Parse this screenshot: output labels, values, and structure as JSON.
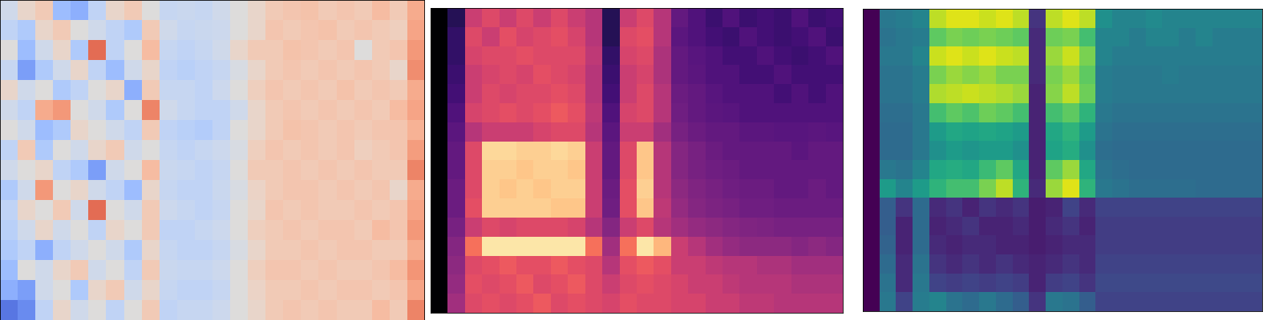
{
  "chart_data": [
    {
      "type": "heatmap",
      "color": "coolwarm",
      "clim": [
        0,
        1
      ],
      "tick_labels": false,
      "cells": [
        [
          0.45,
          0.55,
          0.6,
          0.3,
          0.25,
          0.4,
          0.55,
          0.6,
          0.5,
          0.42,
          0.43,
          0.42,
          0.45,
          0.5,
          0.55,
          0.6,
          0.62,
          0.63,
          0.6,
          0.62,
          0.6,
          0.65,
          0.6,
          0.7
        ],
        [
          0.4,
          0.35,
          0.55,
          0.6,
          0.5,
          0.45,
          0.4,
          0.35,
          0.6,
          0.45,
          0.42,
          0.43,
          0.44,
          0.5,
          0.55,
          0.62,
          0.6,
          0.62,
          0.63,
          0.6,
          0.62,
          0.6,
          0.58,
          0.72
        ],
        [
          0.5,
          0.3,
          0.45,
          0.55,
          0.35,
          0.85,
          0.4,
          0.5,
          0.65,
          0.42,
          0.4,
          0.42,
          0.45,
          0.55,
          0.6,
          0.6,
          0.63,
          0.62,
          0.6,
          0.62,
          0.5,
          0.6,
          0.62,
          0.75
        ],
        [
          0.42,
          0.2,
          0.35,
          0.45,
          0.55,
          0.4,
          0.3,
          0.45,
          0.55,
          0.4,
          0.38,
          0.4,
          0.42,
          0.48,
          0.55,
          0.6,
          0.62,
          0.6,
          0.62,
          0.6,
          0.62,
          0.6,
          0.55,
          0.78
        ],
        [
          0.55,
          0.45,
          0.5,
          0.35,
          0.4,
          0.5,
          0.55,
          0.25,
          0.6,
          0.42,
          0.42,
          0.4,
          0.44,
          0.5,
          0.58,
          0.62,
          0.6,
          0.62,
          0.6,
          0.63,
          0.6,
          0.62,
          0.6,
          0.7
        ],
        [
          0.45,
          0.4,
          0.7,
          0.75,
          0.5,
          0.45,
          0.35,
          0.5,
          0.8,
          0.45,
          0.42,
          0.4,
          0.4,
          0.45,
          0.55,
          0.6,
          0.62,
          0.6,
          0.62,
          0.6,
          0.62,
          0.6,
          0.65,
          0.72
        ],
        [
          0.5,
          0.45,
          0.3,
          0.35,
          0.55,
          0.5,
          0.45,
          0.4,
          0.6,
          0.4,
          0.38,
          0.36,
          0.4,
          0.5,
          0.55,
          0.6,
          0.63,
          0.62,
          0.6,
          0.62,
          0.6,
          0.62,
          0.62,
          0.68
        ],
        [
          0.4,
          0.6,
          0.35,
          0.5,
          0.45,
          0.55,
          0.6,
          0.45,
          0.5,
          0.42,
          0.4,
          0.42,
          0.44,
          0.48,
          0.58,
          0.62,
          0.6,
          0.62,
          0.6,
          0.62,
          0.58,
          0.6,
          0.62,
          0.74
        ],
        [
          0.45,
          0.5,
          0.55,
          0.4,
          0.35,
          0.2,
          0.45,
          0.5,
          0.65,
          0.43,
          0.42,
          0.4,
          0.42,
          0.5,
          0.6,
          0.6,
          0.62,
          0.6,
          0.62,
          0.6,
          0.62,
          0.6,
          0.6,
          0.8
        ],
        [
          0.35,
          0.45,
          0.75,
          0.5,
          0.55,
          0.45,
          0.4,
          0.3,
          0.55,
          0.42,
          0.4,
          0.4,
          0.43,
          0.48,
          0.56,
          0.6,
          0.62,
          0.62,
          0.6,
          0.62,
          0.6,
          0.62,
          0.55,
          0.7
        ],
        [
          0.4,
          0.55,
          0.5,
          0.6,
          0.45,
          0.85,
          0.5,
          0.45,
          0.6,
          0.44,
          0.42,
          0.4,
          0.42,
          0.5,
          0.55,
          0.62,
          0.6,
          0.62,
          0.6,
          0.6,
          0.62,
          0.6,
          0.62,
          0.72
        ],
        [
          0.38,
          0.45,
          0.55,
          0.45,
          0.5,
          0.4,
          0.55,
          0.5,
          0.6,
          0.4,
          0.4,
          0.42,
          0.44,
          0.5,
          0.58,
          0.6,
          0.62,
          0.6,
          0.62,
          0.62,
          0.6,
          0.65,
          0.62,
          0.75
        ],
        [
          0.35,
          0.4,
          0.25,
          0.4,
          0.45,
          0.5,
          0.45,
          0.35,
          0.55,
          0.42,
          0.4,
          0.4,
          0.42,
          0.48,
          0.55,
          0.6,
          0.6,
          0.62,
          0.6,
          0.62,
          0.62,
          0.6,
          0.6,
          0.7
        ],
        [
          0.3,
          0.5,
          0.45,
          0.55,
          0.6,
          0.45,
          0.5,
          0.4,
          0.6,
          0.43,
          0.42,
          0.42,
          0.44,
          0.5,
          0.58,
          0.62,
          0.62,
          0.6,
          0.62,
          0.6,
          0.6,
          0.62,
          0.65,
          0.76
        ],
        [
          0.25,
          0.2,
          0.45,
          0.5,
          0.35,
          0.55,
          0.6,
          0.45,
          0.55,
          0.42,
          0.4,
          0.4,
          0.42,
          0.5,
          0.56,
          0.6,
          0.6,
          0.62,
          0.6,
          0.62,
          0.62,
          0.6,
          0.62,
          0.72
        ],
        [
          0.1,
          0.15,
          0.4,
          0.55,
          0.45,
          0.5,
          0.4,
          0.5,
          0.6,
          0.4,
          0.42,
          0.42,
          0.44,
          0.5,
          0.55,
          0.6,
          0.62,
          0.6,
          0.62,
          0.6,
          0.6,
          0.65,
          0.6,
          0.8
        ]
      ]
    },
    {
      "type": "heatmap",
      "color": "magma",
      "clim": [
        0,
        1
      ],
      "tick_labels": false,
      "cells": [
        [
          0,
          0.15,
          0.55,
          0.6,
          0.55,
          0.6,
          0.55,
          0.6,
          0.55,
          0.5,
          0.15,
          0.55,
          0.6,
          0.5,
          0.3,
          0.25,
          0.2,
          0.25,
          0.2,
          0.22,
          0.2,
          0.25,
          0.2,
          0.22
        ],
        [
          0,
          0.18,
          0.6,
          0.55,
          0.62,
          0.58,
          0.6,
          0.62,
          0.58,
          0.5,
          0.15,
          0.6,
          0.62,
          0.5,
          0.28,
          0.25,
          0.22,
          0.2,
          0.25,
          0.22,
          0.2,
          0.22,
          0.25,
          0.2
        ],
        [
          0,
          0.18,
          0.58,
          0.6,
          0.6,
          0.62,
          0.6,
          0.6,
          0.6,
          0.52,
          0.18,
          0.58,
          0.6,
          0.48,
          0.3,
          0.27,
          0.25,
          0.22,
          0.22,
          0.25,
          0.22,
          0.2,
          0.22,
          0.25
        ],
        [
          0,
          0.2,
          0.55,
          0.58,
          0.6,
          0.58,
          0.62,
          0.6,
          0.58,
          0.5,
          0.2,
          0.55,
          0.58,
          0.48,
          0.3,
          0.28,
          0.25,
          0.25,
          0.22,
          0.22,
          0.25,
          0.22,
          0.22,
          0.22
        ],
        [
          0,
          0.22,
          0.55,
          0.6,
          0.58,
          0.6,
          0.6,
          0.62,
          0.6,
          0.5,
          0.22,
          0.55,
          0.6,
          0.5,
          0.32,
          0.3,
          0.27,
          0.25,
          0.25,
          0.25,
          0.22,
          0.25,
          0.22,
          0.25
        ],
        [
          0,
          0.25,
          0.58,
          0.6,
          0.62,
          0.6,
          0.62,
          0.65,
          0.62,
          0.52,
          0.25,
          0.58,
          0.6,
          0.5,
          0.33,
          0.3,
          0.28,
          0.27,
          0.25,
          0.25,
          0.25,
          0.25,
          0.25,
          0.25
        ],
        [
          0,
          0.28,
          0.5,
          0.55,
          0.55,
          0.55,
          0.58,
          0.6,
          0.6,
          0.5,
          0.28,
          0.55,
          0.55,
          0.45,
          0.35,
          0.32,
          0.3,
          0.3,
          0.28,
          0.28,
          0.27,
          0.27,
          0.28,
          0.27
        ],
        [
          0,
          0.3,
          0.6,
          0.92,
          0.92,
          0.9,
          0.9,
          0.92,
          0.9,
          0.55,
          0.3,
          0.6,
          0.88,
          0.5,
          0.38,
          0.35,
          0.32,
          0.3,
          0.3,
          0.3,
          0.3,
          0.28,
          0.3,
          0.3
        ],
        [
          0,
          0.3,
          0.6,
          0.9,
          0.9,
          0.88,
          0.9,
          0.9,
          0.88,
          0.55,
          0.3,
          0.6,
          0.88,
          0.5,
          0.38,
          0.35,
          0.33,
          0.32,
          0.3,
          0.3,
          0.3,
          0.3,
          0.3,
          0.3
        ],
        [
          0,
          0.32,
          0.6,
          0.9,
          0.88,
          0.9,
          0.88,
          0.9,
          0.9,
          0.55,
          0.32,
          0.62,
          0.9,
          0.5,
          0.4,
          0.37,
          0.35,
          0.33,
          0.32,
          0.32,
          0.3,
          0.3,
          0.32,
          0.3
        ],
        [
          0,
          0.32,
          0.62,
          0.9,
          0.9,
          0.9,
          0.9,
          0.88,
          0.88,
          0.55,
          0.33,
          0.62,
          0.88,
          0.52,
          0.42,
          0.38,
          0.36,
          0.35,
          0.33,
          0.33,
          0.32,
          0.32,
          0.32,
          0.32
        ],
        [
          0,
          0.35,
          0.55,
          0.6,
          0.58,
          0.6,
          0.6,
          0.6,
          0.58,
          0.5,
          0.38,
          0.55,
          0.6,
          0.5,
          0.45,
          0.42,
          0.4,
          0.38,
          0.37,
          0.36,
          0.35,
          0.35,
          0.35,
          0.35
        ],
        [
          0,
          0.38,
          0.7,
          0.95,
          0.95,
          0.95,
          0.95,
          0.95,
          0.95,
          0.7,
          0.45,
          0.7,
          0.95,
          0.85,
          0.55,
          0.5,
          0.45,
          0.42,
          0.4,
          0.4,
          0.4,
          0.38,
          0.4,
          0.38
        ],
        [
          0,
          0.4,
          0.6,
          0.62,
          0.65,
          0.62,
          0.62,
          0.65,
          0.62,
          0.6,
          0.5,
          0.62,
          0.65,
          0.62,
          0.55,
          0.55,
          0.52,
          0.5,
          0.5,
          0.48,
          0.48,
          0.45,
          0.45,
          0.45
        ],
        [
          0,
          0.42,
          0.62,
          0.6,
          0.62,
          0.65,
          0.6,
          0.62,
          0.65,
          0.6,
          0.55,
          0.6,
          0.62,
          0.6,
          0.58,
          0.55,
          0.55,
          0.52,
          0.5,
          0.5,
          0.5,
          0.48,
          0.48,
          0.48
        ],
        [
          0,
          0.45,
          0.6,
          0.62,
          0.6,
          0.62,
          0.65,
          0.6,
          0.62,
          0.6,
          0.58,
          0.62,
          0.6,
          0.6,
          0.58,
          0.58,
          0.55,
          0.55,
          0.52,
          0.52,
          0.5,
          0.5,
          0.5,
          0.5
        ]
      ]
    },
    {
      "type": "heatmap",
      "color": "viridis",
      "clim": [
        0,
        1
      ],
      "tick_labels": false,
      "cells": [
        [
          0,
          0.4,
          0.42,
          0.45,
          0.9,
          0.95,
          0.95,
          0.92,
          0.95,
          0.9,
          0.15,
          0.9,
          0.95,
          0.9,
          0.5,
          0.45,
          0.45,
          0.48,
          0.45,
          0.45,
          0.45,
          0.45,
          0.45,
          0.45
        ],
        [
          0,
          0.38,
          0.4,
          0.42,
          0.75,
          0.8,
          0.78,
          0.8,
          0.78,
          0.75,
          0.12,
          0.78,
          0.8,
          0.7,
          0.45,
          0.45,
          0.42,
          0.45,
          0.45,
          0.42,
          0.45,
          0.42,
          0.42,
          0.42
        ],
        [
          0,
          0.4,
          0.4,
          0.45,
          0.92,
          0.95,
          0.92,
          0.95,
          0.92,
          0.9,
          0.12,
          0.85,
          0.92,
          0.8,
          0.45,
          0.42,
          0.42,
          0.42,
          0.42,
          0.42,
          0.42,
          0.42,
          0.42,
          0.42
        ],
        [
          0,
          0.38,
          0.38,
          0.42,
          0.8,
          0.85,
          0.82,
          0.85,
          0.8,
          0.8,
          0.12,
          0.8,
          0.85,
          0.75,
          0.42,
          0.4,
          0.4,
          0.4,
          0.42,
          0.4,
          0.4,
          0.4,
          0.4,
          0.4
        ],
        [
          0,
          0.38,
          0.38,
          0.42,
          0.88,
          0.9,
          0.92,
          0.9,
          0.88,
          0.85,
          0.1,
          0.82,
          0.9,
          0.78,
          0.42,
          0.4,
          0.4,
          0.4,
          0.4,
          0.4,
          0.4,
          0.4,
          0.4,
          0.4
        ],
        [
          0,
          0.36,
          0.36,
          0.4,
          0.7,
          0.75,
          0.72,
          0.78,
          0.75,
          0.7,
          0.1,
          0.7,
          0.75,
          0.65,
          0.4,
          0.38,
          0.38,
          0.38,
          0.38,
          0.38,
          0.38,
          0.38,
          0.38,
          0.38
        ],
        [
          0,
          0.35,
          0.35,
          0.4,
          0.55,
          0.6,
          0.58,
          0.6,
          0.58,
          0.55,
          0.1,
          0.6,
          0.65,
          0.55,
          0.38,
          0.36,
          0.36,
          0.36,
          0.36,
          0.36,
          0.36,
          0.36,
          0.36,
          0.36
        ],
        [
          0,
          0.35,
          0.35,
          0.4,
          0.5,
          0.55,
          0.52,
          0.55,
          0.55,
          0.5,
          0.1,
          0.58,
          0.62,
          0.5,
          0.36,
          0.35,
          0.35,
          0.35,
          0.35,
          0.35,
          0.35,
          0.35,
          0.35,
          0.35
        ],
        [
          0,
          0.4,
          0.38,
          0.45,
          0.6,
          0.62,
          0.6,
          0.68,
          0.75,
          0.6,
          0.1,
          0.75,
          0.85,
          0.6,
          0.38,
          0.36,
          0.35,
          0.35,
          0.35,
          0.35,
          0.35,
          0.35,
          0.35,
          0.35
        ],
        [
          0,
          0.55,
          0.45,
          0.55,
          0.65,
          0.7,
          0.7,
          0.8,
          0.9,
          0.65,
          0.12,
          0.85,
          0.95,
          0.65,
          0.4,
          0.38,
          0.36,
          0.36,
          0.36,
          0.36,
          0.35,
          0.35,
          0.35,
          0.35
        ],
        [
          0,
          0.3,
          0.15,
          0.35,
          0.12,
          0.15,
          0.1,
          0.15,
          0.12,
          0.15,
          0.08,
          0.1,
          0.2,
          0.12,
          0.2,
          0.2,
          0.2,
          0.2,
          0.2,
          0.2,
          0.2,
          0.2,
          0.2,
          0.2
        ],
        [
          0,
          0.3,
          0.1,
          0.35,
          0.1,
          0.12,
          0.15,
          0.1,
          0.1,
          0.12,
          0.08,
          0.12,
          0.15,
          0.1,
          0.18,
          0.18,
          0.18,
          0.18,
          0.18,
          0.18,
          0.18,
          0.18,
          0.18,
          0.18
        ],
        [
          0,
          0.32,
          0.1,
          0.35,
          0.12,
          0.1,
          0.12,
          0.12,
          0.1,
          0.1,
          0.08,
          0.1,
          0.12,
          0.12,
          0.18,
          0.18,
          0.18,
          0.18,
          0.18,
          0.18,
          0.18,
          0.18,
          0.18,
          0.18
        ],
        [
          0,
          0.35,
          0.12,
          0.38,
          0.15,
          0.12,
          0.15,
          0.12,
          0.15,
          0.12,
          0.1,
          0.12,
          0.15,
          0.12,
          0.2,
          0.2,
          0.2,
          0.2,
          0.2,
          0.2,
          0.2,
          0.2,
          0.2,
          0.2
        ],
        [
          0,
          0.38,
          0.12,
          0.4,
          0.2,
          0.18,
          0.2,
          0.18,
          0.2,
          0.18,
          0.1,
          0.18,
          0.2,
          0.15,
          0.22,
          0.22,
          0.22,
          0.22,
          0.22,
          0.22,
          0.22,
          0.22,
          0.22,
          0.22
        ],
        [
          0,
          0.4,
          0.2,
          0.42,
          0.45,
          0.38,
          0.35,
          0.4,
          0.35,
          0.3,
          0.15,
          0.4,
          0.38,
          0.3,
          0.2,
          0.2,
          0.2,
          0.2,
          0.2,
          0.2,
          0.2,
          0.2,
          0.2,
          0.2
        ]
      ]
    }
  ]
}
